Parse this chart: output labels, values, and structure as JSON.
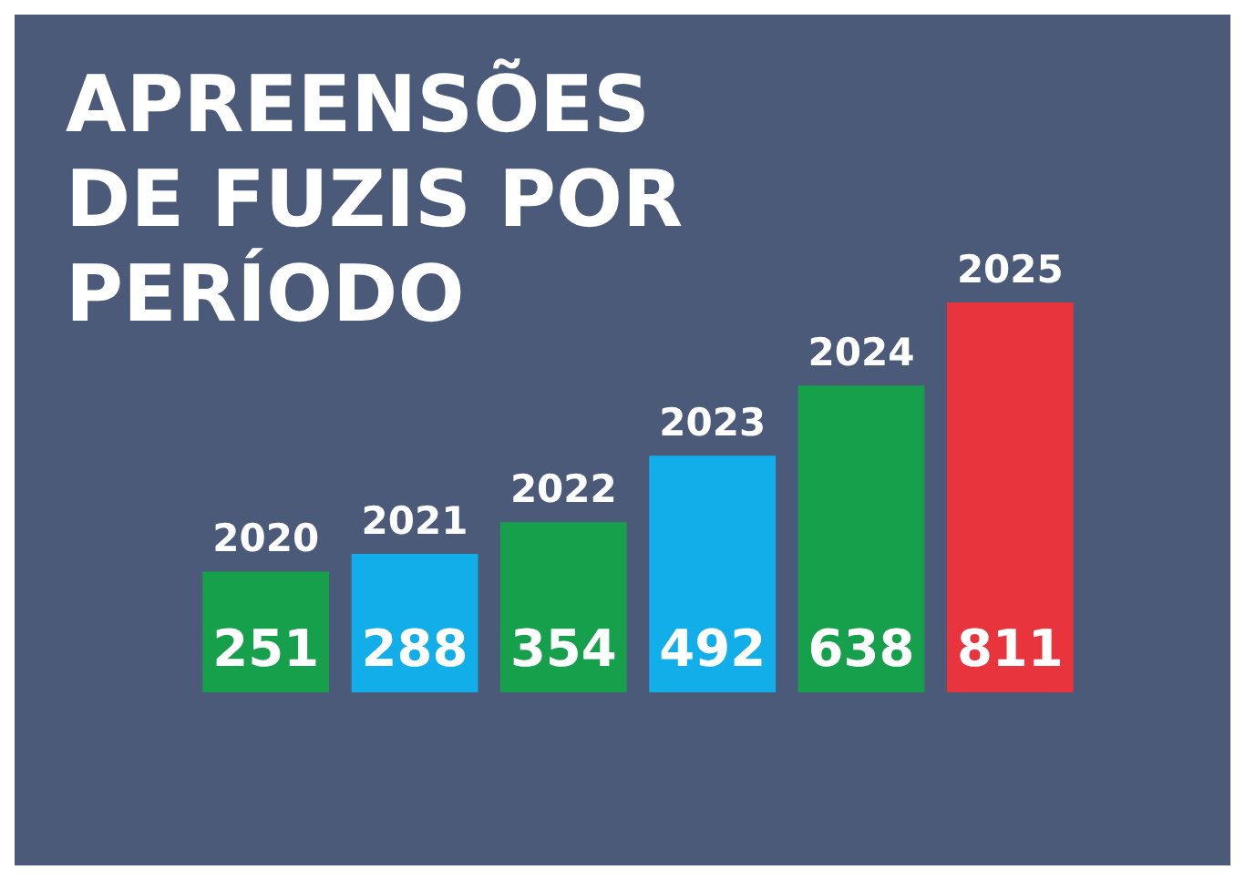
{
  "chart_data": {
    "type": "bar",
    "title": "APREENSÕES DE FUZIS POR PERÍODO",
    "categories": [
      "2020",
      "2021",
      "2022",
      "2023",
      "2024",
      "2025"
    ],
    "values": [
      251,
      288,
      354,
      492,
      638,
      811
    ],
    "colors": [
      "#16a04c",
      "#12aeea",
      "#16a04c",
      "#12aeea",
      "#16a04c",
      "#e8343c"
    ],
    "data_labels": true,
    "legend": false
  }
}
